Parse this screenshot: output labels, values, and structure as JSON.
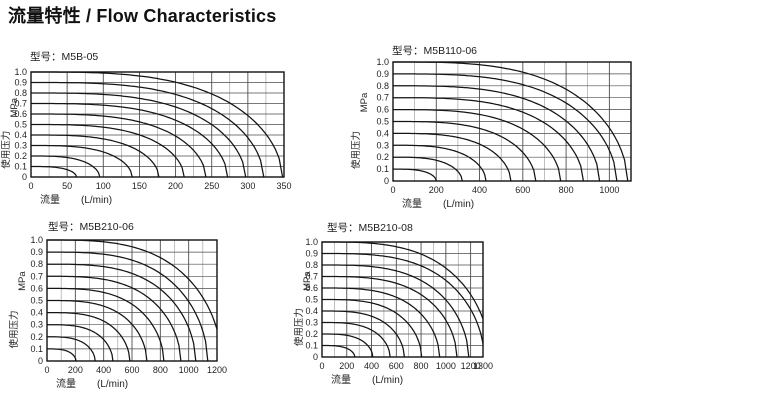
{
  "page": {
    "title": "流量特性 / Flow Characteristics"
  },
  "chart_data": [
    {
      "type": "line",
      "model_label": "型号：M5B-05",
      "xlabel_cn": "流量",
      "xlabel_unit": "(L/min)",
      "ylabel_cn": "使用压力",
      "ylabel_unit": "MPa",
      "xlim": [
        0,
        350
      ],
      "ylim": [
        0,
        1
      ],
      "x_major_ticks": [
        0,
        50,
        100,
        150,
        200,
        250,
        300,
        350
      ],
      "x_minor_step": 25,
      "y_ticks": [
        "1.0",
        "0.9",
        "0.8",
        "0.7",
        "0.6",
        "0.5",
        "0.4",
        "0.3",
        "0.2",
        "0.1",
        "0"
      ],
      "grid": true,
      "legend": "none",
      "curve_model": {
        "x_exponent": 3.2,
        "y_exponent": 0.55
      },
      "series": [
        {
          "name": "0.1 MPa",
          "inlet_pressure_mpa": 0.1,
          "max_flow_lpm": 63
        },
        {
          "name": "0.2 MPa",
          "inlet_pressure_mpa": 0.2,
          "max_flow_lpm": 95
        },
        {
          "name": "0.3 MPa",
          "inlet_pressure_mpa": 0.3,
          "max_flow_lpm": 140
        },
        {
          "name": "0.4 MPa",
          "inlet_pressure_mpa": 0.4,
          "max_flow_lpm": 177
        },
        {
          "name": "0.5 MPa",
          "inlet_pressure_mpa": 0.5,
          "max_flow_lpm": 212
        },
        {
          "name": "0.6 MPa",
          "inlet_pressure_mpa": 0.6,
          "max_flow_lpm": 242
        },
        {
          "name": "0.7 MPa",
          "inlet_pressure_mpa": 0.7,
          "max_flow_lpm": 272
        },
        {
          "name": "0.8 MPa",
          "inlet_pressure_mpa": 0.8,
          "max_flow_lpm": 297
        },
        {
          "name": "0.9 MPa",
          "inlet_pressure_mpa": 0.9,
          "max_flow_lpm": 322
        },
        {
          "name": "1.0 MPa",
          "inlet_pressure_mpa": 1.0,
          "max_flow_lpm": 348
        }
      ]
    },
    {
      "type": "line",
      "model_label": "型号：M5B110-06",
      "xlabel_cn": "流量",
      "xlabel_unit": "(L/min)",
      "ylabel_cn": "使用压力",
      "ylabel_unit": "MPa",
      "xlim": [
        0,
        1100
      ],
      "ylim": [
        0,
        1
      ],
      "x_major_ticks": [
        0,
        200,
        400,
        600,
        800,
        1000
      ],
      "x_minor_step": 100,
      "y_ticks": [
        "1.0",
        "0.9",
        "0.8",
        "0.7",
        "0.6",
        "0.5",
        "0.4",
        "0.3",
        "0.2",
        "0.1",
        "0"
      ],
      "grid": true,
      "legend": "none",
      "curve_model": {
        "x_exponent": 3.2,
        "y_exponent": 0.55
      },
      "series": [
        {
          "name": "0.1 MPa",
          "inlet_pressure_mpa": 0.1,
          "max_flow_lpm": 200
        },
        {
          "name": "0.2 MPa",
          "inlet_pressure_mpa": 0.2,
          "max_flow_lpm": 320
        },
        {
          "name": "0.3 MPa",
          "inlet_pressure_mpa": 0.3,
          "max_flow_lpm": 430
        },
        {
          "name": "0.4 MPa",
          "inlet_pressure_mpa": 0.4,
          "max_flow_lpm": 545
        },
        {
          "name": "0.5 MPa",
          "inlet_pressure_mpa": 0.5,
          "max_flow_lpm": 660
        },
        {
          "name": "0.6 MPa",
          "inlet_pressure_mpa": 0.6,
          "max_flow_lpm": 775
        },
        {
          "name": "0.7 MPa",
          "inlet_pressure_mpa": 0.7,
          "max_flow_lpm": 880
        },
        {
          "name": "0.8 MPa",
          "inlet_pressure_mpa": 0.8,
          "max_flow_lpm": 955
        },
        {
          "name": "0.9 MPa",
          "inlet_pressure_mpa": 0.9,
          "max_flow_lpm": 1035
        },
        {
          "name": "1.0 MPa",
          "inlet_pressure_mpa": 1.0,
          "max_flow_lpm": 1085
        }
      ]
    },
    {
      "type": "line",
      "model_label": "型号：M5B210-06",
      "xlabel_cn": "流量",
      "xlabel_unit": "(L/min)",
      "ylabel_cn": "使用压力",
      "ylabel_unit": "MPa",
      "xlim": [
        0,
        1200
      ],
      "ylim": [
        0,
        1
      ],
      "x_major_ticks": [
        0,
        200,
        400,
        600,
        800,
        1000,
        1200
      ],
      "x_minor_step": 100,
      "y_ticks": [
        "1.0",
        "0.9",
        "0.8",
        "0.7",
        "0.6",
        "0.5",
        "0.4",
        "0.3",
        "0.2",
        "0.1",
        "0"
      ],
      "grid": true,
      "legend": "none",
      "curve_model": {
        "x_exponent": 3.2,
        "y_exponent": 0.55
      },
      "series": [
        {
          "name": "0.1 MPa",
          "inlet_pressure_mpa": 0.1,
          "max_flow_lpm": 205
        },
        {
          "name": "0.2 MPa",
          "inlet_pressure_mpa": 0.2,
          "max_flow_lpm": 340
        },
        {
          "name": "0.3 MPa",
          "inlet_pressure_mpa": 0.3,
          "max_flow_lpm": 465
        },
        {
          "name": "0.4 MPa",
          "inlet_pressure_mpa": 0.4,
          "max_flow_lpm": 585
        },
        {
          "name": "0.5 MPa",
          "inlet_pressure_mpa": 0.5,
          "max_flow_lpm": 705
        },
        {
          "name": "0.6 MPa",
          "inlet_pressure_mpa": 0.6,
          "max_flow_lpm": 825
        },
        {
          "name": "0.7 MPa",
          "inlet_pressure_mpa": 0.7,
          "max_flow_lpm": 945
        },
        {
          "name": "0.8 MPa",
          "inlet_pressure_mpa": 0.8,
          "max_flow_lpm": 1050
        },
        {
          "name": "0.9 MPa",
          "inlet_pressure_mpa": 0.9,
          "max_flow_lpm": 1135
        },
        {
          "name": "1.0 MPa",
          "inlet_pressure_mpa": 1.0,
          "max_flow_lpm": 1235
        }
      ]
    },
    {
      "type": "line",
      "model_label": "型号：M5B210-08",
      "xlabel_cn": "流量",
      "xlabel_unit": "(L/min)",
      "ylabel_cn": "使用压力",
      "ylabel_unit": "MPa",
      "xlim": [
        0,
        1300
      ],
      "ylim": [
        0,
        1
      ],
      "x_major_ticks": [
        0,
        200,
        400,
        600,
        800,
        1000,
        1200,
        1300
      ],
      "x_minor_step": 100,
      "y_ticks": [
        "1.0",
        "0.9",
        "0.8",
        "0.7",
        "0.6",
        "0.5",
        "0.4",
        "0.3",
        "0.2",
        "0.1",
        "0"
      ],
      "grid": true,
      "legend": "none",
      "curve_model": {
        "x_exponent": 3.2,
        "y_exponent": 0.55
      },
      "series": [
        {
          "name": "0.1 MPa",
          "inlet_pressure_mpa": 0.1,
          "max_flow_lpm": 265
        },
        {
          "name": "0.2 MPa",
          "inlet_pressure_mpa": 0.2,
          "max_flow_lpm": 410
        },
        {
          "name": "0.3 MPa",
          "inlet_pressure_mpa": 0.3,
          "max_flow_lpm": 550
        },
        {
          "name": "0.4 MPa",
          "inlet_pressure_mpa": 0.4,
          "max_flow_lpm": 665
        },
        {
          "name": "0.5 MPa",
          "inlet_pressure_mpa": 0.5,
          "max_flow_lpm": 805
        },
        {
          "name": "0.6 MPa",
          "inlet_pressure_mpa": 0.6,
          "max_flow_lpm": 950
        },
        {
          "name": "0.7 MPa",
          "inlet_pressure_mpa": 0.7,
          "max_flow_lpm": 1090
        },
        {
          "name": "0.8 MPa",
          "inlet_pressure_mpa": 0.8,
          "max_flow_lpm": 1185
        },
        {
          "name": "0.9 MPa",
          "inlet_pressure_mpa": 0.9,
          "max_flow_lpm": 1310
        },
        {
          "name": "1.0 MPa",
          "inlet_pressure_mpa": 1.0,
          "max_flow_lpm": 1360
        }
      ]
    }
  ]
}
